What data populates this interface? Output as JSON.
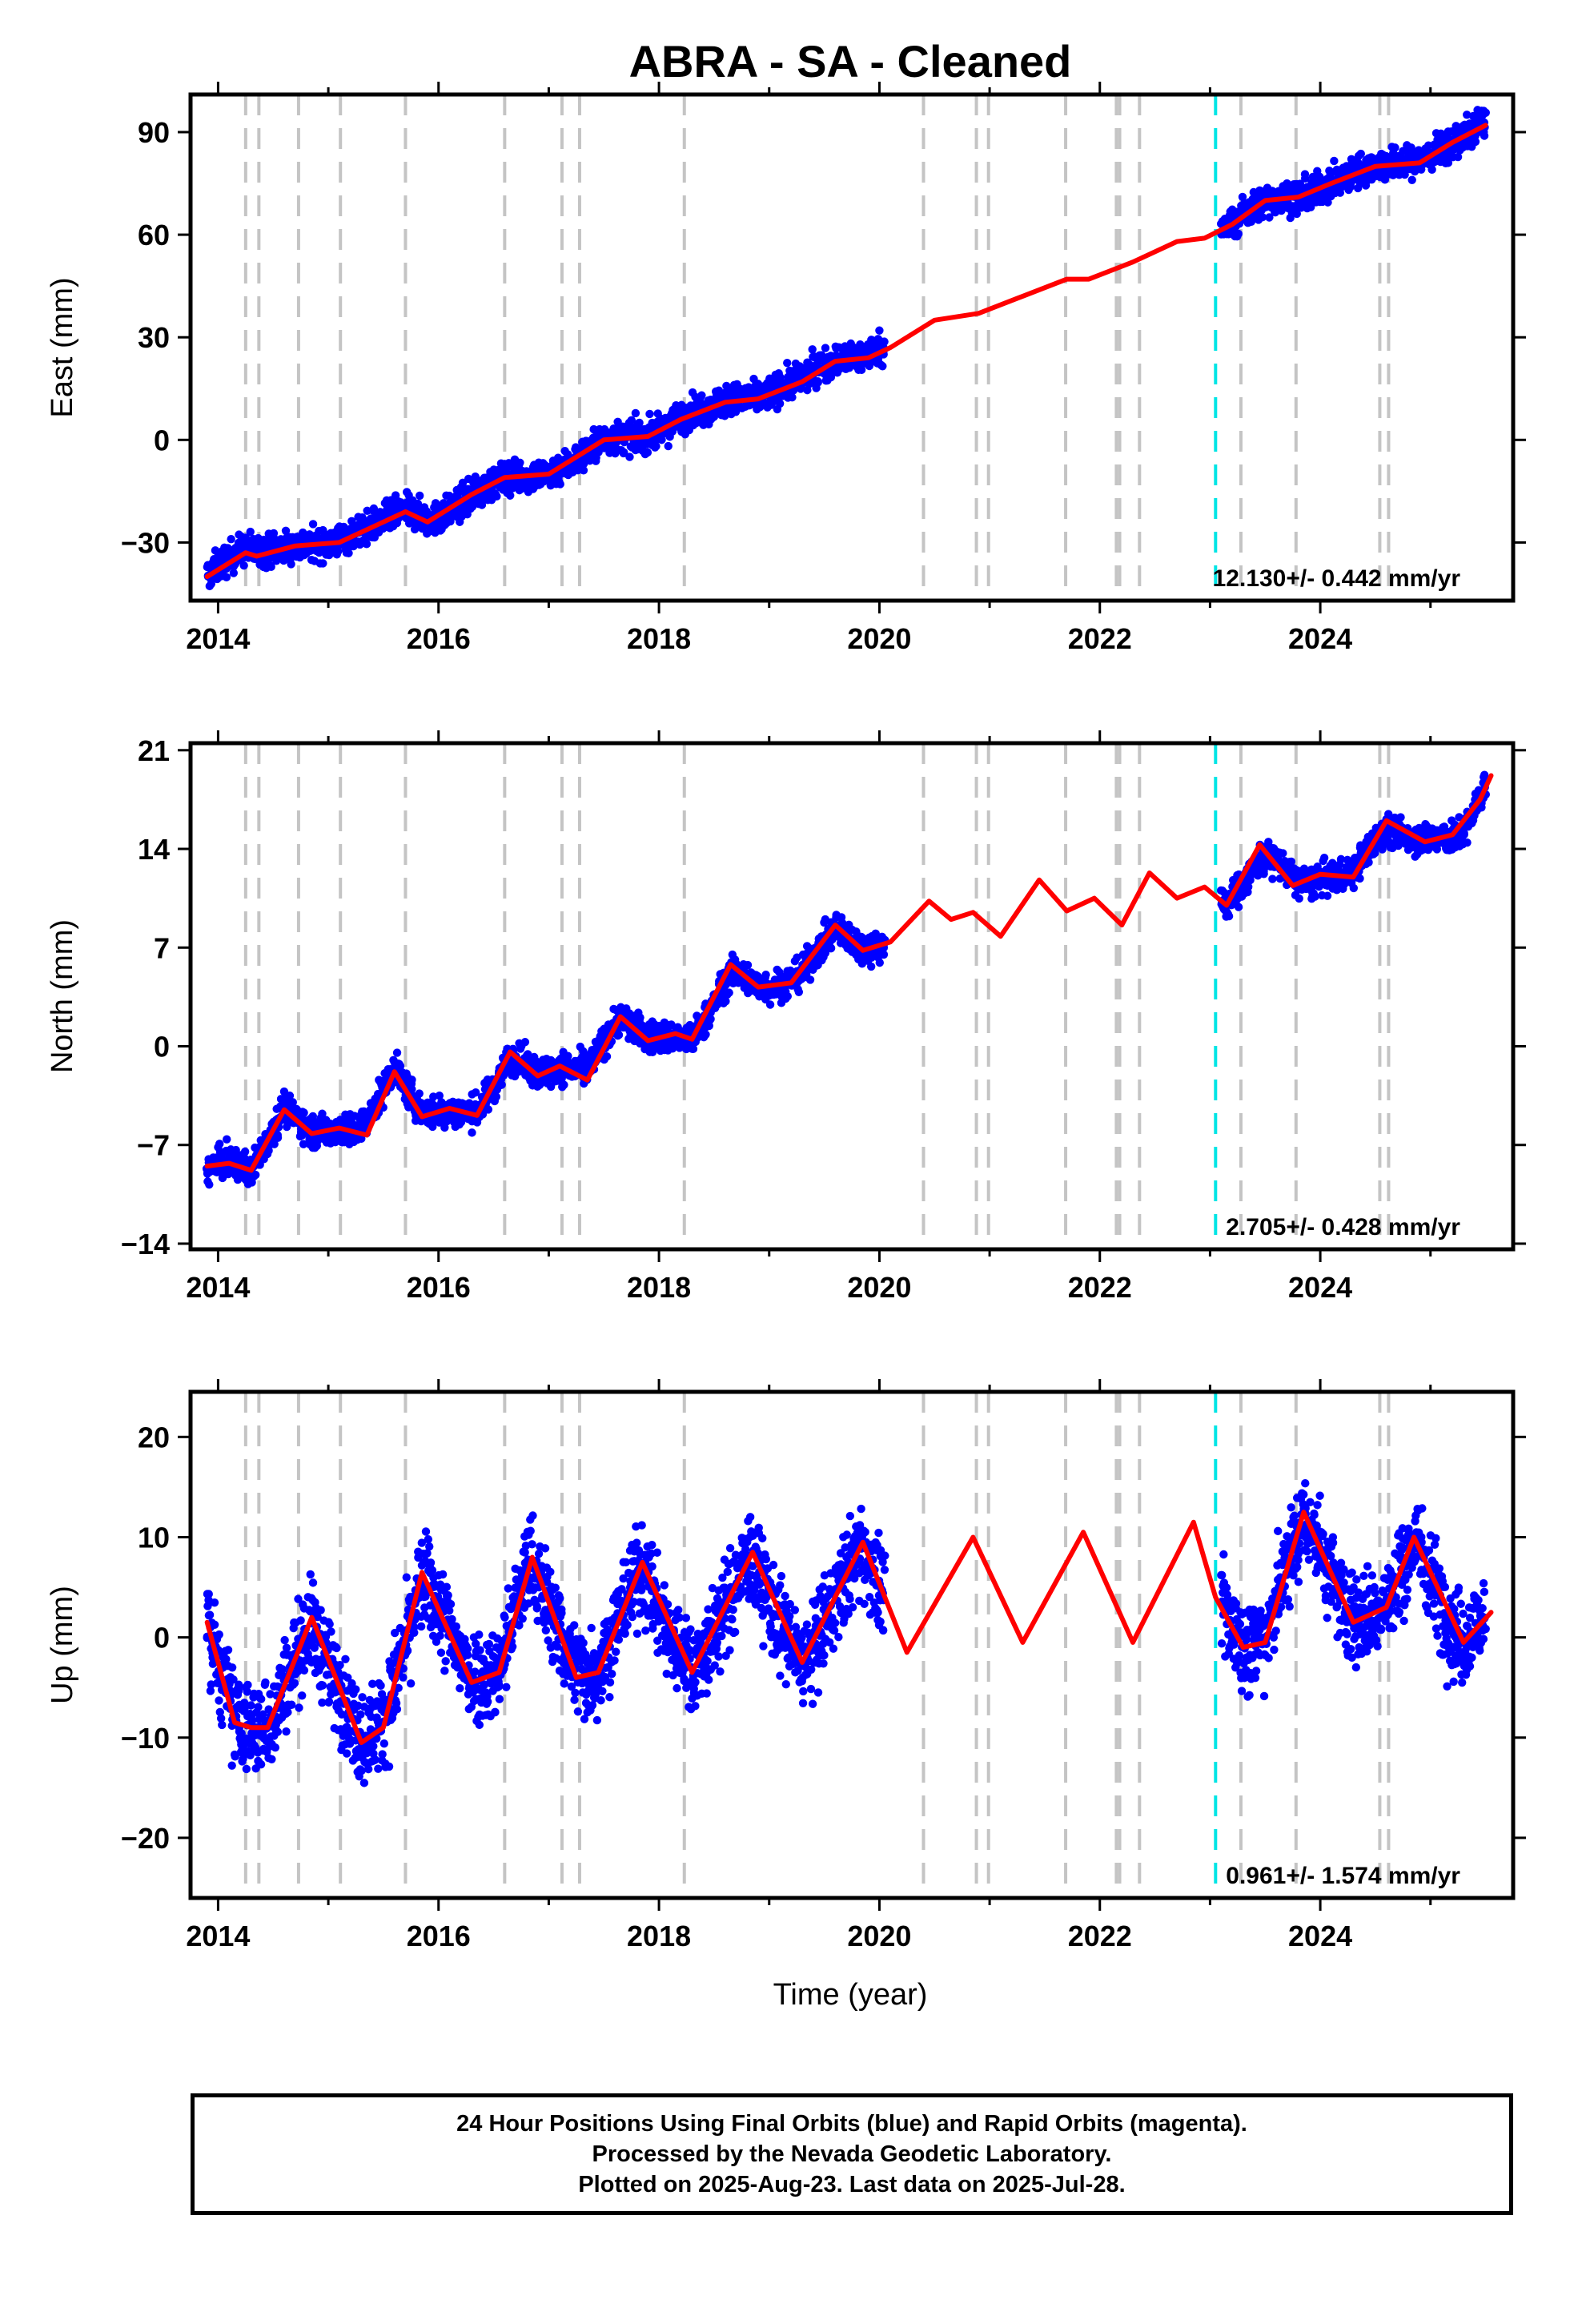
{
  "title": "ABRA  - SA - Cleaned",
  "xlabel": "Time (year)",
  "colors": {
    "final_orbits": "#0000ff",
    "model_fit": "#ff0000",
    "event_line": "#c4c4c4",
    "highlight_event_line": "#00e5e5",
    "frame": "#000000"
  },
  "chart_data": [
    {
      "type": "scatter",
      "panel": "east",
      "ylabel": "East (mm)",
      "rate_label": "12.130+/- 0.442 mm/yr",
      "xlim": [
        2013.75,
        2025.75
      ],
      "ylim": [
        -47,
        101
      ],
      "xticks": [
        2014,
        2016,
        2018,
        2020,
        2022,
        2024
      ],
      "xtick_labels": [
        "2014",
        "2016",
        "2018",
        "2020",
        "2022",
        "2024"
      ],
      "yticks": [
        -30,
        0,
        30,
        60,
        90
      ],
      "ytick_labels": [
        "−30",
        "0",
        "30",
        "60",
        "90"
      ],
      "series": [
        {
          "kind": "observations",
          "x": [
            2013.9,
            2014.0,
            2014.2,
            2014.5,
            2014.8,
            2015.0,
            2015.3,
            2015.6,
            2015.8,
            2016.0,
            2016.3,
            2016.6,
            2016.9,
            2017.2,
            2017.5,
            2017.8,
            2018.0,
            2018.3,
            2018.6,
            2018.9,
            2019.2,
            2019.5,
            2019.8,
            2020.0,
            2023.1,
            2023.3,
            2023.6,
            2023.9,
            2024.2,
            2024.4,
            2024.9,
            2025.2,
            2025.5
          ],
          "y": [
            -39,
            -35,
            -30,
            -31,
            -31,
            -30,
            -26,
            -21,
            -20,
            -24,
            -17,
            -11,
            -11,
            -8,
            0,
            2,
            1,
            10,
            12,
            13,
            18,
            24,
            24,
            29,
            60,
            67,
            71,
            71,
            76,
            80,
            82,
            86,
            95
          ]
        },
        {
          "kind": "model",
          "x": [
            2013.9,
            2014.25,
            2014.35,
            2014.7,
            2015.1,
            2015.5,
            2015.7,
            2015.9,
            2016.3,
            2016.6,
            2017.0,
            2017.5,
            2017.9,
            2018.2,
            2018.6,
            2018.9,
            2019.3,
            2019.6,
            2019.9,
            2020.1,
            2020.5,
            2020.9,
            2021.3,
            2021.7,
            2021.9,
            2022.3,
            2022.7,
            2022.95,
            2023.2,
            2023.5,
            2023.8,
            2024.1,
            2024.5,
            2024.9,
            2025.2,
            2025.5
          ],
          "y": [
            -40,
            -33,
            -34,
            -31,
            -30,
            -24,
            -21,
            -24,
            -16,
            -11,
            -10,
            0,
            1,
            6,
            11,
            12,
            17,
            23,
            24,
            27,
            35,
            37,
            42,
            47,
            47,
            52,
            58,
            59,
            63,
            70,
            71,
            75,
            80,
            81,
            87,
            92
          ]
        }
      ],
      "event_lines": [
        2014.25,
        2014.37,
        2014.73,
        2015.11,
        2015.7,
        2016.6,
        2017.12,
        2017.28,
        2018.23,
        2020.4,
        2020.88,
        2020.99,
        2021.69,
        2022.15,
        2022.18,
        2022.36,
        2023.28,
        2023.78,
        2024.54,
        2024.62
      ],
      "highlight_event_lines": [
        2023.05
      ]
    },
    {
      "type": "scatter",
      "panel": "north",
      "ylabel": "North (mm)",
      "rate_label": "2.705+/- 0.428 mm/yr",
      "xlim": [
        2013.75,
        2025.75
      ],
      "ylim": [
        -14.4,
        21.5
      ],
      "xticks": [
        2014,
        2016,
        2018,
        2020,
        2022,
        2024
      ],
      "xtick_labels": [
        "2014",
        "2016",
        "2018",
        "2020",
        "2022",
        "2024"
      ],
      "yticks": [
        -14,
        -7,
        0,
        7,
        14,
        21
      ],
      "ytick_labels": [
        "−14",
        "−7",
        "0",
        "7",
        "14",
        "21"
      ],
      "series": [
        {
          "kind": "observations",
          "x": [
            2013.9,
            2014.1,
            2014.3,
            2014.6,
            2014.9,
            2015.2,
            2015.6,
            2015.8,
            2016.1,
            2016.4,
            2016.7,
            2017.0,
            2017.3,
            2017.6,
            2017.9,
            2018.2,
            2018.4,
            2018.7,
            2019.0,
            2019.3,
            2019.6,
            2019.9,
            2020.0,
            2023.1,
            2023.4,
            2023.6,
            2023.9,
            2024.2,
            2024.4,
            2025.0,
            2025.3,
            2025.5
          ],
          "y": [
            -9,
            -8,
            -9,
            -4,
            -6,
            -6,
            -1,
            -4,
            -5,
            -4,
            -1,
            -2,
            -1,
            2,
            1,
            0,
            1,
            5,
            4,
            5,
            8,
            7,
            7,
            10,
            11,
            14,
            11,
            12,
            14,
            15,
            14,
            19
          ]
        },
        {
          "kind": "model",
          "x": [
            2013.9,
            2014.1,
            2014.3,
            2014.6,
            2014.85,
            2015.1,
            2015.35,
            2015.6,
            2015.85,
            2016.1,
            2016.35,
            2016.65,
            2016.9,
            2017.1,
            2017.35,
            2017.65,
            2017.9,
            2018.15,
            2018.3,
            2018.65,
            2018.9,
            2019.2,
            2019.6,
            2019.85,
            2020.1,
            2020.45,
            2020.65,
            2020.85,
            2021.1,
            2021.45,
            2021.7,
            2021.95,
            2022.2,
            2022.45,
            2022.7,
            2022.95,
            2023.15,
            2023.45,
            2023.75,
            2024.0,
            2024.3,
            2024.6,
            2024.95,
            2025.2,
            2025.45,
            2025.55
          ],
          "y": [
            -8.5,
            -8.3,
            -8.8,
            -4.5,
            -6.2,
            -5.8,
            -6.3,
            -1.8,
            -5,
            -4.4,
            -4.9,
            -0.4,
            -2.1,
            -1.4,
            -2.4,
            2.1,
            0.4,
            0.9,
            0.5,
            5.8,
            4.2,
            4.5,
            8.6,
            6.8,
            7.4,
            10.3,
            9.0,
            9.5,
            7.8,
            11.8,
            9.6,
            10.5,
            8.6,
            12.3,
            10.5,
            11.3,
            10.0,
            14.3,
            11.4,
            12.2,
            12.0,
            16.0,
            14.5,
            15.0,
            17.5,
            19.2
          ]
        }
      ],
      "event_lines": [
        2014.25,
        2014.37,
        2014.73,
        2015.11,
        2015.7,
        2016.6,
        2017.12,
        2017.28,
        2018.23,
        2020.4,
        2020.88,
        2020.99,
        2021.69,
        2022.15,
        2022.18,
        2022.36,
        2023.28,
        2023.78,
        2024.54,
        2024.62
      ],
      "highlight_event_lines": [
        2023.05
      ]
    },
    {
      "type": "scatter",
      "panel": "up",
      "ylabel": "Up (mm)",
      "rate_label": "0.961+/- 1.574 mm/yr",
      "xlim": [
        2013.75,
        2025.75
      ],
      "ylim": [
        -26,
        24.5
      ],
      "xticks": [
        2014,
        2016,
        2018,
        2020,
        2022,
        2024
      ],
      "xtick_labels": [
        "2014",
        "2016",
        "2018",
        "2020",
        "2022",
        "2024"
      ],
      "yticks": [
        -20,
        -10,
        0,
        10,
        20
      ],
      "ytick_labels": [
        "−20",
        "−10",
        "0",
        "10",
        "20"
      ],
      "series": [
        {
          "kind": "observations",
          "x": [
            2013.9,
            2014.1,
            2014.3,
            2014.5,
            2014.8,
            2015.0,
            2015.3,
            2015.6,
            2015.9,
            2016.2,
            2016.5,
            2016.8,
            2017.1,
            2017.4,
            2017.8,
            2018.1,
            2018.4,
            2018.8,
            2019.1,
            2019.4,
            2019.8,
            2020.0,
            2023.1,
            2023.4,
            2023.7,
            2023.9,
            2024.2,
            2024.5,
            2024.9,
            2025.2,
            2025.5
          ],
          "y": [
            1,
            -6,
            -10,
            -8,
            1,
            -4,
            -10,
            -5,
            6,
            -2,
            -4,
            8,
            0,
            -4,
            7,
            -2,
            -3,
            8,
            -1,
            -3,
            9,
            4,
            2,
            -1,
            8,
            12,
            3,
            2,
            9,
            -1,
            2
          ]
        },
        {
          "kind": "model",
          "x": [
            2013.9,
            2014.15,
            2014.3,
            2014.45,
            2014.85,
            2015.3,
            2015.5,
            2015.85,
            2016.3,
            2016.55,
            2016.85,
            2017.25,
            2017.45,
            2017.85,
            2018.3,
            2018.85,
            2019.3,
            2019.85,
            2020.25,
            2020.85,
            2021.3,
            2021.85,
            2022.3,
            2022.85,
            2023.05,
            2023.3,
            2023.5,
            2023.85,
            2024.3,
            2024.6,
            2024.85,
            2025.3,
            2025.55
          ],
          "y": [
            1.5,
            -8.5,
            -9,
            -9,
            2,
            -10.5,
            -9,
            6.5,
            -4.5,
            -3.5,
            8,
            -4,
            -3.5,
            7.5,
            -3.5,
            8.5,
            -2.5,
            9.5,
            -1.5,
            10,
            -0.5,
            10.5,
            -0.5,
            11.5,
            4,
            -1,
            -0.5,
            12.5,
            1.5,
            3,
            10,
            -0.5,
            2.5
          ]
        }
      ],
      "event_lines": [
        2014.25,
        2014.37,
        2014.73,
        2015.11,
        2015.7,
        2016.6,
        2017.12,
        2017.28,
        2018.23,
        2020.4,
        2020.88,
        2020.99,
        2021.69,
        2022.15,
        2022.18,
        2022.36,
        2023.28,
        2023.78,
        2024.54,
        2024.62
      ],
      "highlight_event_lines": [
        2023.05
      ]
    }
  ],
  "footer": {
    "line1": "24 Hour Positions Using Final Orbits (blue) and Rapid Orbits (magenta).",
    "line2": "Processed by the Nevada Geodetic Laboratory.",
    "line3": "Plotted on 2025-Aug-23. Last data on 2025-Jul-28."
  }
}
